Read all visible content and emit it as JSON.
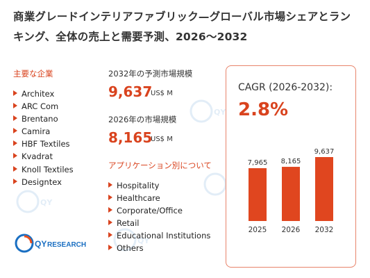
{
  "title": "商業グレードインテリアファブリック—グローバル市場シェアとランキング、全体の売上と需要予測、2026〜2032",
  "companies": {
    "label": "主要な企業",
    "items": [
      "Architex",
      "ARC Com",
      "Brentano",
      "Camira",
      "HBF Textiles",
      "Kvadrat",
      "Knoll Textiles",
      "Designtex"
    ]
  },
  "stats": {
    "forecast_label": "2032年の予測市場規模",
    "forecast_value": "9,637",
    "forecast_unit": "US$ M",
    "current_label": "2026年の市場規模",
    "current_value": "8,165",
    "current_unit": "US$ M"
  },
  "applications": {
    "label": "アプリケーション別について",
    "items": [
      "Hospitality",
      "Healthcare",
      "Corporate/Office",
      "Retail",
      "Educational Institutions",
      "Others"
    ]
  },
  "cagr": {
    "label": "CAGR (2026-2032):",
    "value": "2.8%"
  },
  "logo": {
    "text_bold": "QY",
    "text_rest": "RESEARCH"
  },
  "colors": {
    "accent": "#d9431e",
    "bar": "#e0461f",
    "card_border": "#e8836a"
  },
  "chart_data": {
    "type": "bar",
    "categories": [
      "2025",
      "2026",
      "2032"
    ],
    "values": [
      7965,
      8165,
      9637
    ],
    "data_labels": [
      "7,965",
      "8,165",
      "9,637"
    ],
    "title": "",
    "xlabel": "",
    "ylabel": "",
    "grid": false
  }
}
